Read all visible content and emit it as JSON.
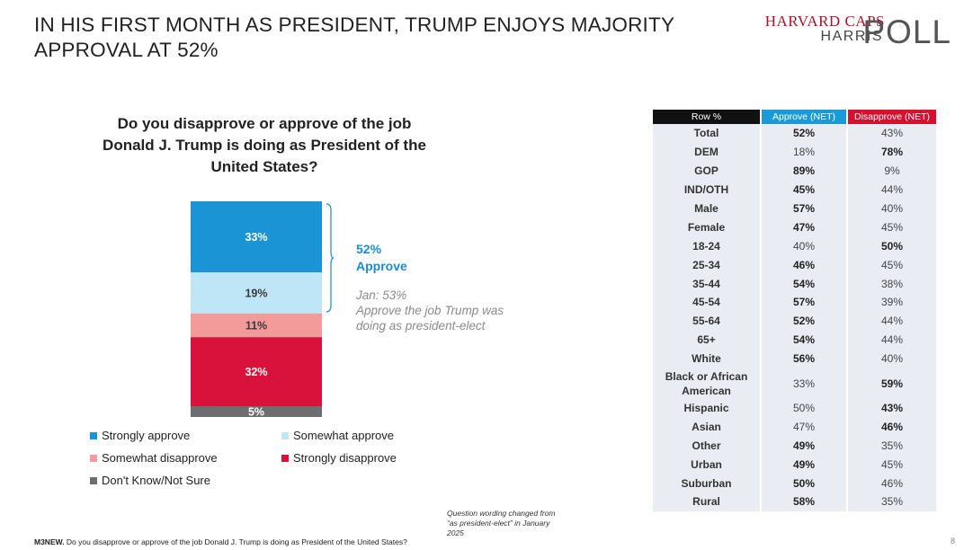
{
  "page_title": "IN HIS FIRST MONTH AS PRESIDENT, TRUMP ENJOYS MAJORITY APPROVAL AT 52%",
  "logo": {
    "line1": "HARVARD CAPS",
    "line2": "HARRIS",
    "line3": "POLL"
  },
  "question": "Do you disapprove or approve of the job Donald J. Trump is doing as President of the United States?",
  "net_approve": {
    "value": "52%",
    "label": "Approve"
  },
  "jan_note": {
    "line1": "Jan: 53%",
    "line2": "Approve the job Trump was doing as president-elect"
  },
  "question_note": "Question wording changed from “as president-elect” in January 2025",
  "footer": {
    "code": "M3NEW.",
    "text": "Do you disapprove or approve of the job Donald J. Trump is doing as President of the United States?"
  },
  "page_number": "8",
  "colors": {
    "strongly_approve": "#1a94d4",
    "somewhat_approve": "#bfe6f7",
    "somewhat_disapprove": "#f39a9b",
    "strongly_disapprove": "#d8123a",
    "dont_know": "#6d6e70"
  },
  "chart_data": [
    {
      "type": "bar",
      "title": "Do you disapprove or approve of the job Donald J. Trump is doing as President of the United States?",
      "stacked": true,
      "categories": [
        ""
      ],
      "series": [
        {
          "name": "Strongly approve",
          "values": [
            33
          ],
          "label": "33%",
          "color": "#1a94d4"
        },
        {
          "name": "Somewhat approve",
          "values": [
            19
          ],
          "label": "19%",
          "color": "#bfe6f7"
        },
        {
          "name": "Somewhat disapprove",
          "values": [
            11
          ],
          "label": "11%",
          "color": "#f39a9b"
        },
        {
          "name": "Strongly disapprove",
          "values": [
            32
          ],
          "label": "32%",
          "color": "#d8123a"
        },
        {
          "name": "Don't Know/Not Sure",
          "values": [
            5
          ],
          "label": "5%",
          "color": "#6d6e70"
        }
      ],
      "legend": "bottom"
    },
    {
      "type": "table",
      "columns": [
        "Row %",
        "Approve (NET)",
        "Disapprove (NET)"
      ],
      "rows": [
        {
          "label": "Total",
          "approve": "52%",
          "disapprove": "43%",
          "bold": "approve"
        },
        {
          "label": "DEM",
          "approve": "18%",
          "disapprove": "78%",
          "bold": "disapprove"
        },
        {
          "label": "GOP",
          "approve": "89%",
          "disapprove": "9%",
          "bold": "approve"
        },
        {
          "label": "IND/OTH",
          "approve": "45%",
          "disapprove": "44%",
          "bold": "approve"
        },
        {
          "label": "Male",
          "approve": "57%",
          "disapprove": "40%",
          "bold": "approve"
        },
        {
          "label": "Female",
          "approve": "47%",
          "disapprove": "45%",
          "bold": "approve"
        },
        {
          "label": "18-24",
          "approve": "40%",
          "disapprove": "50%",
          "bold": "disapprove"
        },
        {
          "label": "25-34",
          "approve": "46%",
          "disapprove": "45%",
          "bold": "approve"
        },
        {
          "label": "35-44",
          "approve": "54%",
          "disapprove": "38%",
          "bold": "approve"
        },
        {
          "label": "45-54",
          "approve": "57%",
          "disapprove": "39%",
          "bold": "approve"
        },
        {
          "label": "55-64",
          "approve": "52%",
          "disapprove": "44%",
          "bold": "approve"
        },
        {
          "label": "65+",
          "approve": "54%",
          "disapprove": "44%",
          "bold": "approve"
        },
        {
          "label": "White",
          "approve": "56%",
          "disapprove": "40%",
          "bold": "approve"
        },
        {
          "label": "Black or African American",
          "approve": "33%",
          "disapprove": "59%",
          "bold": "disapprove"
        },
        {
          "label": "Hispanic",
          "approve": "50%",
          "disapprove": "43%",
          "bold": "disapprove"
        },
        {
          "label": "Asian",
          "approve": "47%",
          "disapprove": "46%",
          "bold": "disapprove"
        },
        {
          "label": "Other",
          "approve": "49%",
          "disapprove": "35%",
          "bold": "approve"
        },
        {
          "label": "Urban",
          "approve": "49%",
          "disapprove": "45%",
          "bold": "approve"
        },
        {
          "label": "Suburban",
          "approve": "50%",
          "disapprove": "46%",
          "bold": "approve"
        },
        {
          "label": "Rural",
          "approve": "58%",
          "disapprove": "35%",
          "bold": "approve"
        }
      ]
    }
  ]
}
